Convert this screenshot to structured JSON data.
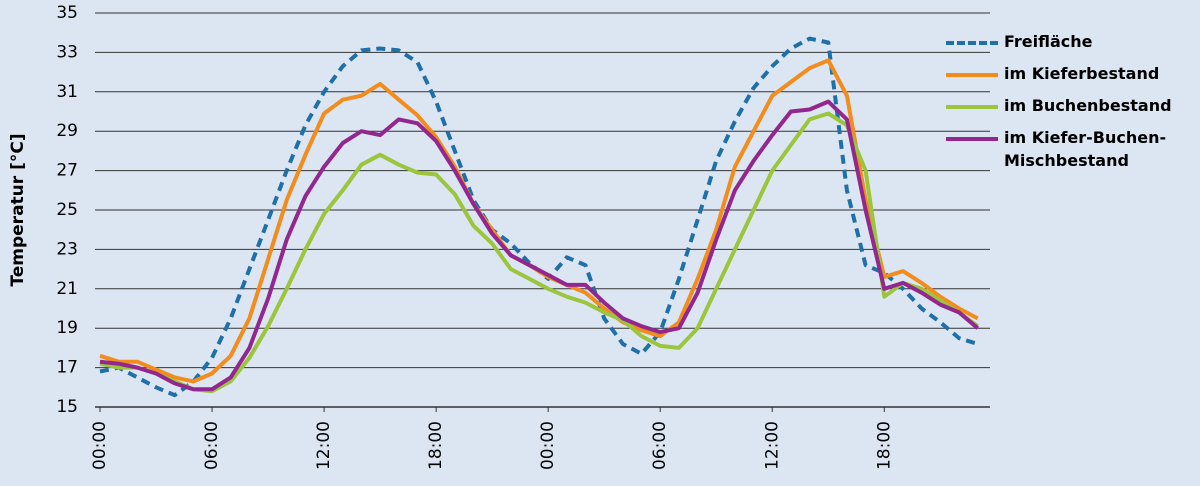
{
  "chart_data": {
    "type": "line",
    "y_label": "Temperatur [°C]",
    "x": [
      0,
      1,
      2,
      3,
      4,
      5,
      6,
      7,
      8,
      9,
      10,
      11,
      12,
      13,
      14,
      15,
      16,
      17,
      18,
      19,
      20,
      21,
      22,
      23,
      24,
      25,
      26,
      27,
      28,
      29,
      30,
      31,
      32,
      33,
      34,
      35,
      36,
      37,
      38,
      39,
      40,
      41,
      42,
      43,
      44,
      45,
      46,
      47
    ],
    "xlim": [
      0,
      47.5
    ],
    "xticks": [
      {
        "value": 0,
        "label": "00:00"
      },
      {
        "value": 6,
        "label": "06:00"
      },
      {
        "value": 12,
        "label": "12:00"
      },
      {
        "value": 18,
        "label": "18:00"
      },
      {
        "value": 24,
        "label": "00:00"
      },
      {
        "value": 30,
        "label": "06:00"
      },
      {
        "value": 36,
        "label": "12:00"
      },
      {
        "value": 42,
        "label": "18:00"
      }
    ],
    "ylim": [
      15,
      35
    ],
    "yticks": [
      15,
      17,
      19,
      21,
      23,
      25,
      27,
      29,
      31,
      33,
      35
    ],
    "grid": true,
    "legend": "right",
    "series": [
      {
        "name": "Freifläche",
        "color": "#1f6fa8",
        "dashed": true,
        "values": [
          16.8,
          17.0,
          16.5,
          16.0,
          15.6,
          16.3,
          17.5,
          19.5,
          22.0,
          24.5,
          27.0,
          29.3,
          31.0,
          32.3,
          33.1,
          33.2,
          33.1,
          32.5,
          30.5,
          28.0,
          25.5,
          24.0,
          23.3,
          22.3,
          21.5,
          22.6,
          22.2,
          19.5,
          18.2,
          17.7,
          18.8,
          21.5,
          24.5,
          27.5,
          29.5,
          31.2,
          32.3,
          33.2,
          33.7,
          33.5,
          26.0,
          22.2,
          21.8,
          21.0,
          20.0,
          19.3,
          18.5,
          18.2
        ]
      },
      {
        "name": "im Kieferbestand",
        "color": "#f28c1c",
        "dashed": false,
        "values": [
          17.6,
          17.3,
          17.3,
          16.9,
          16.5,
          16.3,
          16.7,
          17.6,
          19.5,
          22.5,
          25.5,
          27.8,
          29.9,
          30.6,
          30.8,
          31.4,
          30.6,
          29.8,
          28.7,
          27.2,
          25.3,
          24.0,
          22.7,
          22.2,
          21.6,
          21.2,
          20.8,
          20.0,
          19.3,
          18.9,
          18.6,
          19.3,
          21.5,
          24.0,
          27.2,
          29.0,
          30.8,
          31.5,
          32.2,
          32.6,
          30.8,
          25.5,
          21.6,
          21.9,
          21.3,
          20.6,
          20.0,
          19.5
        ]
      },
      {
        "name": "im Buchenbestand",
        "color": "#9bc53d",
        "dashed": false,
        "values": [
          17.2,
          17.0,
          17.0,
          16.7,
          16.3,
          15.9,
          15.8,
          16.3,
          17.5,
          19.1,
          21.0,
          23.0,
          24.8,
          26.0,
          27.3,
          27.8,
          27.3,
          26.9,
          26.8,
          25.8,
          24.2,
          23.3,
          22.0,
          21.5,
          21.0,
          20.6,
          20.3,
          19.8,
          19.4,
          18.6,
          18.1,
          18.0,
          19.0,
          21.0,
          23.0,
          25.0,
          27.0,
          28.3,
          29.6,
          29.9,
          29.3,
          27.0,
          20.6,
          21.3,
          21.0,
          20.4,
          19.8,
          19.1
        ]
      },
      {
        "name": "im Kiefer-Buchen-Mischbestand",
        "color": "#92278f",
        "dashed": false,
        "values": [
          17.3,
          17.2,
          17.0,
          16.7,
          16.2,
          15.9,
          15.9,
          16.5,
          18.0,
          20.5,
          23.5,
          25.7,
          27.2,
          28.4,
          29.0,
          28.8,
          29.6,
          29.4,
          28.5,
          27.0,
          25.3,
          23.8,
          22.7,
          22.2,
          21.7,
          21.2,
          21.2,
          20.3,
          19.5,
          19.1,
          18.8,
          19.0,
          20.8,
          23.5,
          26.0,
          27.5,
          28.8,
          30.0,
          30.1,
          30.5,
          29.6,
          25.0,
          21.0,
          21.3,
          20.8,
          20.2,
          19.8,
          19.0
        ]
      }
    ]
  }
}
